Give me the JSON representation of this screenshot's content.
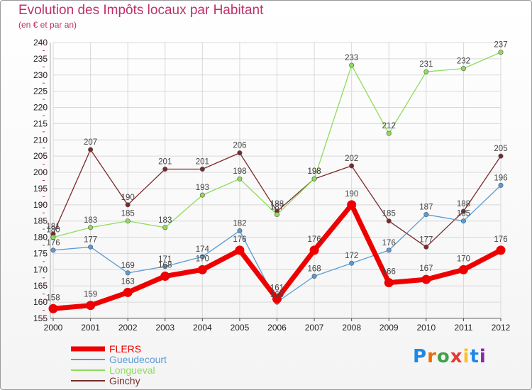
{
  "header": {
    "title": "Evolution des Impôts locaux par Habitant",
    "subtitle": "(en € et par an)"
  },
  "logo": {
    "text": "Proxiti"
  },
  "colors": {
    "title": "#c0306a",
    "grid": "#d8d8d8",
    "axis_marks": "#c0306a"
  },
  "chart_data": {
    "type": "line",
    "title": "Evolution des Impôts locaux par Habitant",
    "subtitle": "(en € et par an)",
    "xlabel": "",
    "ylabel": "",
    "ylim": [
      155,
      240
    ],
    "yticks": [
      155,
      160,
      165,
      170,
      175,
      180,
      185,
      190,
      195,
      200,
      205,
      210,
      215,
      220,
      225,
      230,
      235,
      240
    ],
    "categories": [
      "2000",
      "2001",
      "2002",
      "2003",
      "2004",
      "2005",
      "2006",
      "2007",
      "2008",
      "2009",
      "2010",
      "2011",
      "2012"
    ],
    "legend_position": "bottom-left",
    "grid": true,
    "series": [
      {
        "name": "FLERS",
        "color": "#ee0000",
        "values": [
          158,
          159,
          163,
          168,
          170,
          176,
          161,
          176,
          190,
          166,
          167,
          170,
          176
        ]
      },
      {
        "name": "Gueudecourt",
        "color": "#5b9bd5",
        "values": [
          176,
          177,
          169,
          171,
          174,
          182,
          160,
          168,
          172,
          176,
          187,
          185,
          196
        ]
      },
      {
        "name": "Longueval",
        "color": "#8fdc5a",
        "values": [
          180,
          183,
          185,
          183,
          193,
          198,
          187,
          198,
          233,
          212,
          231,
          232,
          237
        ]
      },
      {
        "name": "Ginchy",
        "color": "#7a2a2a",
        "values": [
          181,
          207,
          190,
          201,
          201,
          206,
          188,
          198,
          202,
          185,
          177,
          188,
          205
        ]
      }
    ]
  }
}
